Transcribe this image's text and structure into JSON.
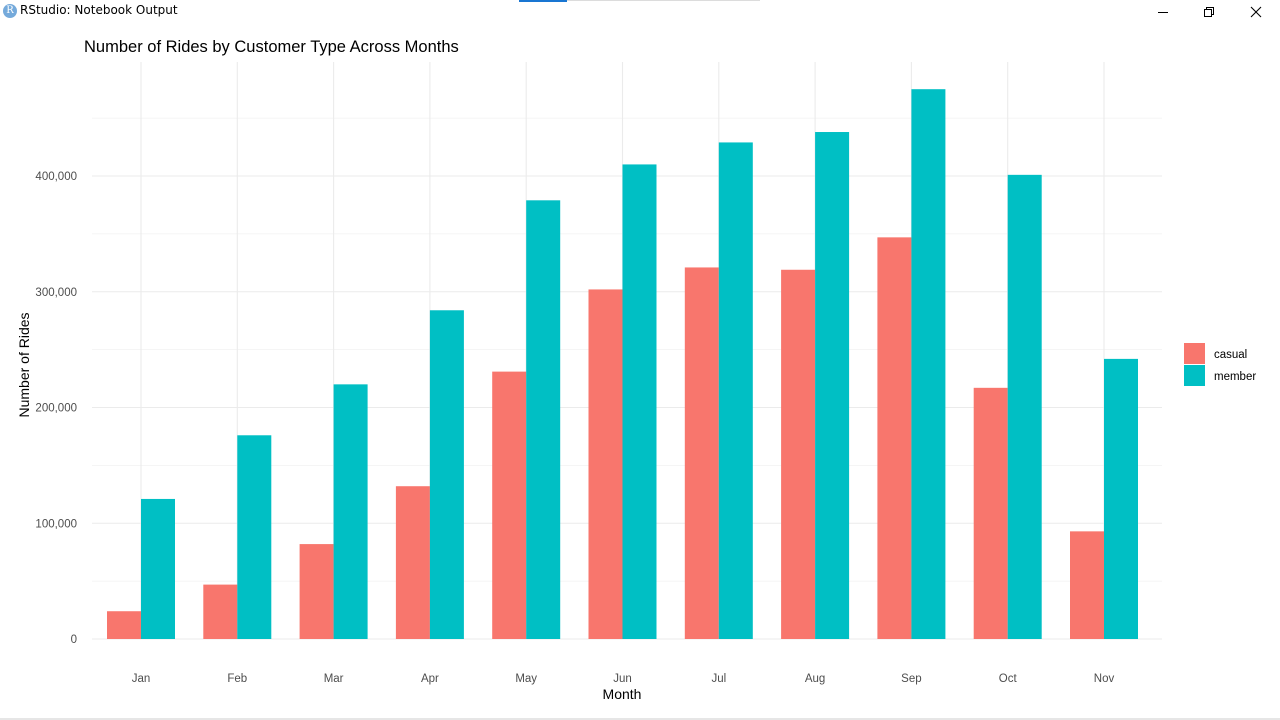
{
  "window": {
    "title": "RStudio: Notebook Output",
    "icon": "r-app-icon",
    "controls": [
      "minimize-icon",
      "restore-icon",
      "close-icon"
    ]
  },
  "colors": {
    "casual": "#f8766d",
    "member": "#00bfc4",
    "grid": "#ebebeb",
    "text": "#000000",
    "tick_text": "#4d4d4d"
  },
  "chart_data": {
    "type": "bar",
    "title": "Number of Rides by Customer Type Across Months",
    "xlabel": "Month",
    "ylabel": "Number of Rides",
    "categories": [
      "Jan",
      "Feb",
      "Mar",
      "Apr",
      "May",
      "Jun",
      "Jul",
      "Aug",
      "Sep",
      "Oct",
      "Nov"
    ],
    "series": [
      {
        "name": "casual",
        "values": [
          24000,
          47000,
          82000,
          132000,
          231000,
          302000,
          321000,
          319000,
          347000,
          217000,
          93000
        ]
      },
      {
        "name": "member",
        "values": [
          121000,
          176000,
          220000,
          284000,
          379000,
          410000,
          429000,
          438000,
          475000,
          401000,
          242000
        ]
      }
    ],
    "y_ticks": [
      0,
      100000,
      200000,
      300000,
      400000
    ],
    "y_tick_labels": [
      "0",
      "100,000",
      "200,000",
      "300,000",
      "400,000"
    ],
    "ylim": [
      0,
      490000
    ],
    "grid": true,
    "legend_position": "right"
  }
}
